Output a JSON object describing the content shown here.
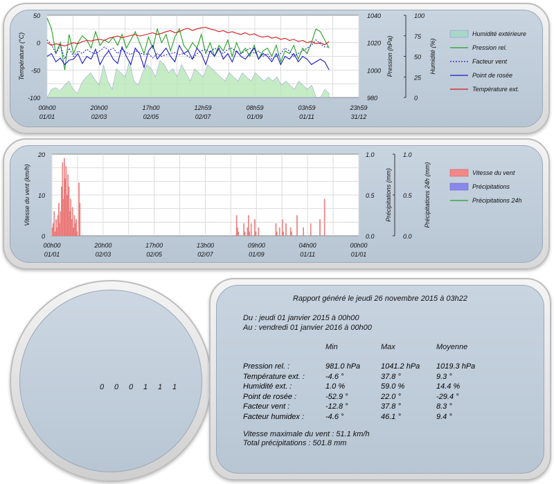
{
  "colors": {
    "humidity": "#90e090",
    "pressure": "#20a020",
    "windchill": "#2020c0",
    "dewpoint": "#1818c8",
    "temperature": "#d01818",
    "wind": "#f08080",
    "rain": "#7070e0",
    "rain24": "#20a020"
  },
  "chart_data": [
    {
      "type": "line",
      "x_ticks": [
        {
          "time": "00h00",
          "date": "01/01"
        },
        {
          "time": "20h00",
          "date": "02/03"
        },
        {
          "time": "17h00",
          "date": "02/05"
        },
        {
          "time": "12h59",
          "date": "02/07"
        },
        {
          "time": "08h59",
          "date": "01/09"
        },
        {
          "time": "03h59",
          "date": "01/11"
        },
        {
          "time": "23h59",
          "date": "31/12"
        }
      ],
      "axes": {
        "temperature": {
          "label": "Température (°C)",
          "range": [
            -100,
            50
          ],
          "ticks": [
            "50",
            "0",
            "-50",
            "-100"
          ]
        },
        "pressure": {
          "label": "Pression (hPa)",
          "range": [
            980,
            1040
          ],
          "ticks": [
            "1040",
            "1020",
            "1000",
            "980"
          ]
        },
        "humidity": {
          "label": "Humidité (%)",
          "range": [
            0,
            100
          ],
          "ticks": [
            "100",
            "75",
            "50",
            "25",
            "0"
          ]
        }
      },
      "legend": [
        "Humidité extérieure",
        "Pression rel.",
        "Facteur vent",
        "Point de rosée",
        "Température ext."
      ],
      "series": [
        {
          "name": "Humidité extérieure",
          "axis": "humidity",
          "style": "area",
          "values": [
            0,
            10,
            12,
            8,
            15,
            20,
            10,
            5,
            18,
            25,
            30,
            22,
            15,
            40,
            20,
            10,
            35,
            30,
            25,
            45,
            20,
            15,
            30,
            40,
            35,
            25,
            45,
            40,
            30,
            35,
            25,
            40,
            30,
            20,
            35,
            30,
            25,
            40,
            35,
            30,
            25,
            20,
            30,
            25,
            20,
            30,
            25,
            20,
            30,
            25,
            20,
            25,
            20,
            25,
            15,
            20,
            15,
            10,
            20,
            15,
            10,
            15,
            0,
            0,
            10,
            5
          ]
        },
        {
          "name": "Pression rel.",
          "axis": "pressure",
          "values": [
            1038,
            1030,
            1012,
            1020,
            1000,
            1026,
            1012,
            1020,
            1025,
            1022,
            1016,
            1028,
            1018,
            1022,
            1020,
            1024,
            1018,
            1026,
            1016,
            1022,
            1028,
            1020,
            1012,
            1024,
            1016,
            1030,
            1020,
            1026,
            1014,
            1024,
            1030,
            1018,
            1014,
            1020,
            1016,
            1026,
            1012,
            1020,
            1010,
            1018,
            1014,
            1022,
            1010,
            1020,
            1012,
            1016,
            1010,
            1018,
            1008,
            1014,
            1016,
            1010,
            1018,
            1006,
            1014,
            1012,
            1018,
            1008,
            1016,
            1012,
            1020,
            1030,
            1028,
            1022,
            1016
          ]
        },
        {
          "name": "Facteur vent",
          "axis": "temperature",
          "values": [
            5,
            -4,
            -20,
            -5,
            -30,
            -10,
            -25,
            -15,
            -20,
            -12,
            -18,
            -20,
            -15,
            -8,
            -14,
            -10,
            -20,
            -12,
            -18,
            -22,
            -15,
            -18,
            -22,
            -20,
            -28,
            -20,
            -25,
            -22,
            -20,
            -18,
            -22,
            -20,
            -25,
            -30,
            -20,
            -15,
            -12,
            -18,
            -10,
            -15,
            -20,
            -12,
            -10,
            -18,
            -20,
            -15,
            -10,
            -20,
            -15,
            -25,
            -20,
            -30,
            -25,
            -20,
            -10,
            -15,
            -25,
            -20,
            -15,
            -10,
            -5,
            5,
            -2,
            -8,
            -8
          ]
        },
        {
          "name": "Point de rosée",
          "axis": "temperature",
          "values": [
            -25,
            -20,
            -35,
            -28,
            -40,
            -32,
            -30,
            -20,
            -38,
            -25,
            -30,
            -12,
            -40,
            -25,
            -15,
            -30,
            -38,
            -8,
            -25,
            -40,
            -10,
            -20,
            -45,
            -15,
            -5,
            -30,
            -20,
            -10,
            -25,
            -35,
            -5,
            -20,
            -15,
            -30,
            -10,
            -20,
            -40,
            -15,
            -25,
            -10,
            -30,
            -20,
            -35,
            -15,
            -25,
            -30,
            -20,
            -10,
            -30,
            -20,
            -25,
            -35,
            -20,
            -40,
            -25,
            -30,
            -20,
            -35,
            -25,
            -30,
            -40,
            -35,
            -30,
            -35,
            -50
          ]
        },
        {
          "name": "Température ext.",
          "axis": "temperature",
          "values": [
            0,
            -5,
            -2,
            -4,
            -6,
            -3,
            0,
            -2,
            2,
            4,
            3,
            5,
            6,
            4,
            8,
            10,
            12,
            9,
            11,
            13,
            15,
            12,
            14,
            16,
            18,
            15,
            17,
            20,
            22,
            18,
            20,
            24,
            26,
            22,
            25,
            27,
            28,
            25,
            23,
            20,
            22,
            18,
            20,
            17,
            15,
            18,
            14,
            16,
            12,
            10,
            12,
            8,
            10,
            6,
            8,
            4,
            6,
            2,
            4,
            0,
            2,
            -2,
            0,
            -4,
            2
          ]
        }
      ]
    },
    {
      "type": "bar",
      "x_ticks": [
        {
          "time": "00h00",
          "date": "01/01"
        },
        {
          "time": "20h00",
          "date": "02/03"
        },
        {
          "time": "17h00",
          "date": "02/05"
        },
        {
          "time": "13h00",
          "date": "02/07"
        },
        {
          "time": "09h00",
          "date": "01/09"
        },
        {
          "time": "04h00",
          "date": "01/11"
        },
        {
          "time": "00h00",
          "date": "01/01"
        }
      ],
      "axes": {
        "wind": {
          "label": "Vitesse du vent (km/h)",
          "range": [
            0,
            20
          ],
          "ticks": [
            "20",
            "10",
            "0"
          ]
        },
        "rain": {
          "label": "Précipitations (mm)",
          "range": [
            0,
            1
          ],
          "ticks": [
            "1.0",
            "0.5",
            "0.0"
          ]
        },
        "rain24": {
          "label": "Précipitations 24h (mm)",
          "range": [
            0,
            1
          ],
          "ticks": [
            "1.0",
            "0.5",
            "0.0"
          ]
        }
      },
      "legend": [
        "Vitesse du vent",
        "Précipitations",
        "Précipitations 24h"
      ],
      "series": [
        {
          "name": "Vitesse du vent",
          "axis": "wind",
          "values": [
            2,
            3,
            6,
            1,
            4,
            2,
            5,
            8,
            3,
            6,
            12,
            18,
            9,
            19,
            14,
            17,
            10,
            15,
            12,
            6,
            9,
            4,
            7,
            2,
            5,
            3,
            4,
            1,
            0,
            13,
            8,
            0,
            0,
            0,
            0,
            0,
            0,
            0,
            0,
            0,
            0,
            0,
            0,
            0,
            0,
            0,
            0,
            0,
            0,
            0,
            0,
            0,
            0,
            0,
            0,
            0,
            0,
            0,
            0,
            0,
            0,
            0,
            0,
            0,
            0,
            0,
            0,
            0,
            0,
            0,
            0,
            0,
            0,
            0,
            0,
            0,
            0,
            0,
            0,
            0,
            0,
            0,
            0,
            0,
            0,
            0,
            0,
            0,
            0,
            0,
            0,
            0,
            0,
            0,
            0,
            0,
            0,
            0,
            0,
            0,
            0,
            0,
            0,
            0,
            0,
            0,
            0,
            0,
            0,
            0,
            0,
            0,
            0,
            0,
            0,
            0,
            0,
            0,
            0,
            0,
            0,
            0,
            0,
            0,
            0,
            0,
            0,
            0,
            0,
            0,
            0,
            0,
            0,
            0,
            0,
            0,
            0,
            0,
            0,
            0,
            0,
            0,
            0,
            0,
            0,
            0,
            0,
            0,
            0,
            0,
            0,
            0,
            0,
            0,
            0,
            0,
            0,
            0,
            0,
            0,
            0,
            0,
            0,
            0,
            0,
            0,
            0,
            0,
            0,
            0,
            0,
            0,
            0,
            0,
            0,
            0,
            0,
            0,
            0,
            0,
            0,
            0,
            0,
            0,
            0,
            0,
            0,
            0,
            0,
            0,
            0,
            0,
            0,
            0,
            0,
            0,
            0,
            0,
            0,
            0,
            0,
            5,
            2,
            1,
            0,
            0,
            0,
            0,
            0,
            3,
            1,
            0,
            0,
            2,
            5,
            1,
            0,
            3,
            0,
            0,
            0,
            4,
            1,
            0,
            0,
            2,
            0,
            0,
            0,
            0,
            0,
            0,
            0,
            0,
            0,
            0,
            0,
            0,
            0,
            0,
            0,
            0,
            0,
            0,
            3,
            1,
            0,
            0,
            2,
            0,
            0,
            4,
            1,
            0,
            0,
            3,
            0,
            0,
            0,
            0,
            2,
            1,
            0,
            0,
            0,
            0,
            0,
            5,
            0,
            0,
            0,
            0,
            0,
            0,
            2,
            0,
            0,
            0,
            0,
            0,
            0,
            0,
            3,
            0,
            0,
            0,
            0,
            0,
            0,
            0,
            0,
            0,
            4,
            0,
            0,
            0,
            0,
            9,
            0,
            0,
            0,
            0,
            0,
            0
          ]
        },
        {
          "name": "Précipitations",
          "axis": "rain",
          "values": []
        },
        {
          "name": "Précipitations 24h",
          "axis": "rain24",
          "values": []
        }
      ]
    }
  ],
  "gauge": {
    "digits": [
      "0",
      "0",
      "0",
      "1",
      "1",
      "1"
    ]
  },
  "report": {
    "title": "Rapport généré le jeudi 26 novembre 2015 à 03h22",
    "from": "Du : jeudi 01 janvier 2015 à 00h00",
    "to": "Au : vendredi 01 janvier 2016 à 00h00",
    "headers": [
      "Min",
      "Max",
      "Moyenne"
    ],
    "rows": [
      {
        "label": "Pression rel. :",
        "min": "981.0 hPa",
        "max": "1041.2 hPa",
        "avg": "1019.3 hPa"
      },
      {
        "label": "Température ext. :",
        "min": "-4.6 °",
        "max": "37.8 °",
        "avg": "9.3 °"
      },
      {
        "label": "Humidité ext. :",
        "min": "1.0 %",
        "max": "59.0 %",
        "avg": "14.4 %"
      },
      {
        "label": "Point de rosée :",
        "min": "-52.9 °",
        "max": "22.0 °",
        "avg": "-29.4 °"
      },
      {
        "label": "Facteur vent :",
        "min": "-12.8 °",
        "max": "37.8 °",
        "avg": "8.3 °"
      },
      {
        "label": "Facteur humidex :",
        "min": "-4.6 °",
        "max": "46.1 °",
        "avg": "9.4 °"
      }
    ],
    "max_wind": "Vitesse maximale du vent : 51.1 km/h",
    "total_rain": "Total précipitations : 501.8 mm"
  }
}
